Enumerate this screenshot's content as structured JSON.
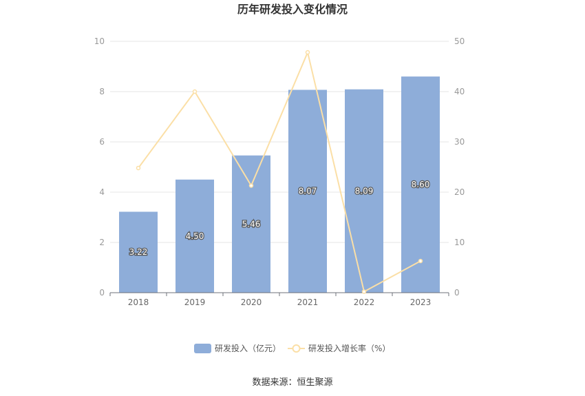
{
  "chart_data": {
    "type": "bar",
    "title": "历年研发投入变化情况",
    "categories": [
      "2018",
      "2019",
      "2020",
      "2021",
      "2022",
      "2023"
    ],
    "series": [
      {
        "name": "研发投入（亿元）",
        "type": "bar",
        "axis": "left",
        "values": [
          3.22,
          4.5,
          5.46,
          8.07,
          8.09,
          8.6
        ],
        "labels": [
          "3.22",
          "4.50",
          "5.46",
          "8.07",
          "8.09",
          "8.60"
        ],
        "color": "#8eadd9"
      },
      {
        "name": "研发投入增长率（%）",
        "type": "line",
        "axis": "right",
        "values": [
          24.8,
          40.0,
          21.3,
          47.8,
          0.2,
          6.3
        ],
        "color": "#fbdfa6"
      }
    ],
    "y_left": {
      "min": 0,
      "max": 10,
      "ticks": [
        "0",
        "2",
        "4",
        "6",
        "8",
        "10"
      ]
    },
    "y_right": {
      "min": 0,
      "max": 50,
      "ticks": [
        "0",
        "10",
        "20",
        "30",
        "40",
        "50"
      ]
    },
    "grid": true,
    "legend_position": "bottom-center"
  },
  "source": "数据来源：恒生聚源"
}
